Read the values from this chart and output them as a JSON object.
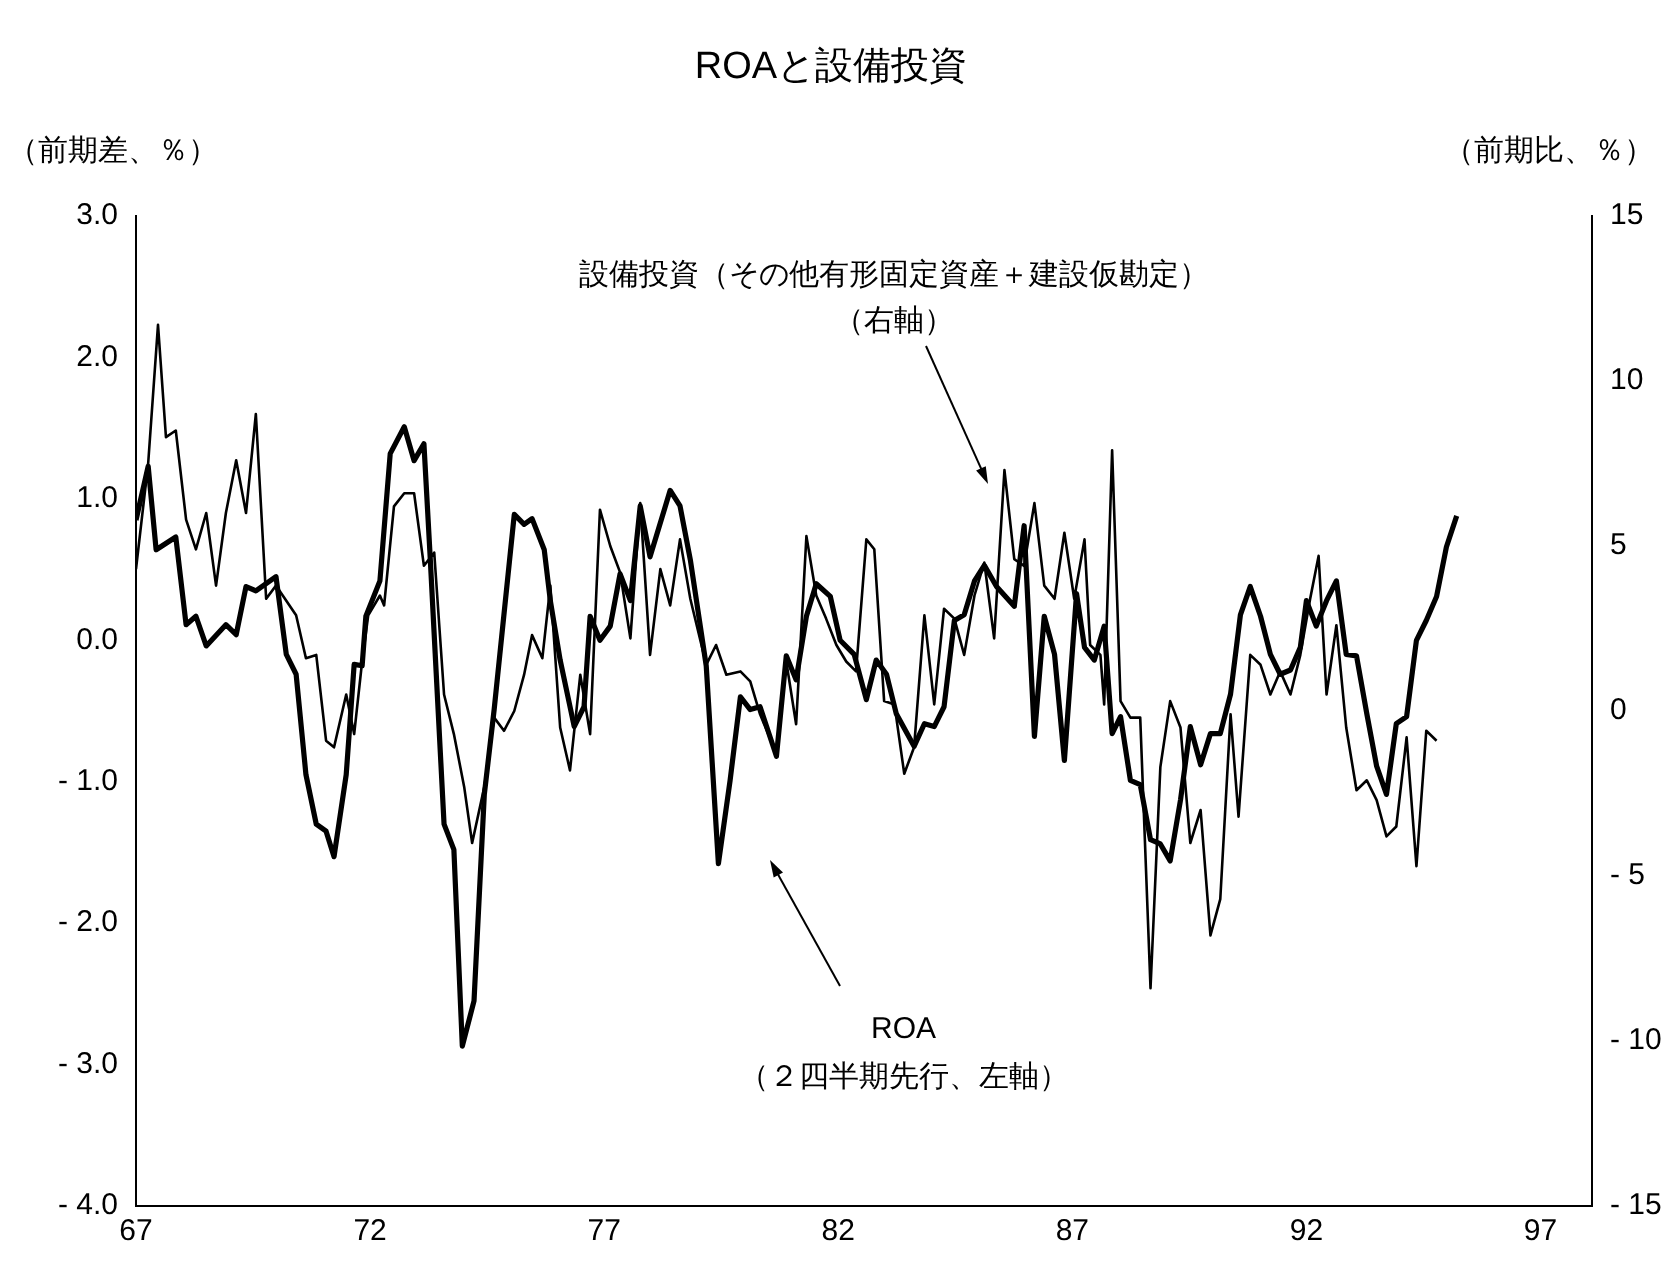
{
  "chart_data": {
    "type": "line",
    "title": "ROAと設備投資",
    "ylabel": "（前期差、％）",
    "y2label": "（前期比、％）",
    "legend": false,
    "grid": false,
    "xlim": [
      67,
      98.1
    ],
    "xticks": [
      67,
      72,
      77,
      82,
      87,
      92,
      97
    ],
    "ylim": [
      -4,
      3
    ],
    "yticks": [
      {
        "value": 3,
        "label": "3.0"
      },
      {
        "value": 2,
        "label": "2.0"
      },
      {
        "value": 1,
        "label": "1.0"
      },
      {
        "value": 0,
        "label": "0.0"
      },
      {
        "value": -1,
        "label": "- 1.0"
      },
      {
        "value": -2,
        "label": "- 2.0"
      },
      {
        "value": -3,
        "label": "- 3.0"
      },
      {
        "value": -4,
        "label": "- 4.0"
      }
    ],
    "y2lim": [
      -15,
      15
    ],
    "y2ticks": [
      15,
      10,
      5,
      0,
      {
        "value": -5,
        "label": "- 5"
      },
      {
        "value": -10,
        "label": "- 10"
      },
      {
        "value": -15,
        "label": "- 15"
      }
    ],
    "annotations": [
      "設備投資（その他有形固定資産＋建設仮勘定）",
      "（右軸）",
      "ROA",
      "（２四半期先行、左軸）"
    ],
    "series": [
      {
        "color": "#000000",
        "axis": "y",
        "x": [
          67.0,
          67.26,
          67.43,
          67.85,
          68.07,
          68.28,
          68.5,
          68.92,
          69.14,
          69.35,
          69.56,
          69.99,
          70.21,
          70.42,
          70.63,
          70.85,
          71.06,
          71.23,
          71.49,
          71.66,
          71.83,
          71.91,
          72.21,
          72.43,
          72.73,
          72.94,
          73.15,
          73.28,
          73.58,
          73.79,
          73.97,
          74.22,
          74.44,
          74.65,
          75.08,
          75.29,
          75.46,
          75.72,
          75.85,
          76.06,
          76.36,
          76.57,
          76.7,
          76.91,
          77.13,
          77.34,
          77.56,
          77.77,
          77.98,
          78.41,
          78.62,
          78.84,
          79.18,
          79.44,
          79.69,
          79.91,
          80.12,
          80.33,
          80.68,
          80.89,
          81.1,
          81.32,
          81.53,
          81.83,
          82.04,
          82.34,
          82.6,
          82.81,
          83.03,
          83.24,
          83.62,
          83.84,
          84.05,
          84.26,
          84.48,
          84.69,
          84.91,
          85.12,
          85.38,
          85.76,
          85.97,
          86.19,
          86.4,
          86.62,
          86.83,
          87.09,
          87.26,
          87.47,
          87.68,
          87.85,
          88.03,
          88.24,
          88.45,
          88.67,
          88.88,
          89.09,
          89.31,
          89.52,
          89.74,
          89.95,
          90.16,
          90.38,
          90.59,
          90.8,
          91.02,
          91.23,
          91.44,
          91.66,
          91.87,
          92.0,
          92.21,
          92.43,
          92.64,
          92.85,
          93.07,
          93.29,
          93.5,
          93.71,
          93.92,
          94.14,
          94.35,
          94.56,
          94.78,
          94.99,
          95.21
        ],
        "values": [
          0.85,
          1.23,
          0.64,
          0.73,
          0.11,
          0.17,
          -0.04,
          0.11,
          0.04,
          0.38,
          0.35,
          0.45,
          -0.1,
          -0.24,
          -0.95,
          -1.3,
          -1.35,
          -1.53,
          -0.95,
          -0.17,
          -0.18,
          0.17,
          0.42,
          1.32,
          1.51,
          1.27,
          1.39,
          0.61,
          -1.3,
          -1.48,
          -2.87,
          -2.55,
          -1.09,
          -0.49,
          0.89,
          0.82,
          0.86,
          0.64,
          0.28,
          -0.14,
          -0.61,
          -0.47,
          0.17,
          0.0,
          0.1,
          0.47,
          0.28,
          0.95,
          0.59,
          1.06,
          0.95,
          0.57,
          -0.18,
          -1.58,
          -0.99,
          -0.4,
          -0.49,
          -0.47,
          -0.82,
          -0.11,
          -0.28,
          0.17,
          0.4,
          0.31,
          0.0,
          -0.1,
          -0.42,
          -0.14,
          -0.24,
          -0.52,
          -0.75,
          -0.59,
          -0.61,
          -0.47,
          0.14,
          0.18,
          0.42,
          0.53,
          0.38,
          0.24,
          0.81,
          -0.68,
          0.17,
          -0.1,
          -0.85,
          0.33,
          -0.05,
          -0.14,
          0.1,
          -0.66,
          -0.54,
          -0.99,
          -1.02,
          -1.41,
          -1.44,
          -1.56,
          -1.13,
          -0.61,
          -0.88,
          -0.66,
          -0.66,
          -0.38,
          0.18,
          0.38,
          0.17,
          -0.1,
          -0.24,
          -0.21,
          -0.05,
          0.28,
          0.1,
          0.28,
          0.42,
          -0.1,
          -0.11,
          -0.52,
          -0.89,
          -1.09,
          -0.59,
          -0.54,
          0.0,
          0.14,
          0.31,
          0.66,
          0.88
        ]
      },
      {
        "color": "#000000",
        "axis": "y2",
        "x": [
          67.0,
          67.26,
          67.47,
          67.64,
          67.85,
          68.07,
          68.28,
          68.5,
          68.71,
          68.92,
          69.14,
          69.35,
          69.56,
          69.78,
          69.99,
          70.42,
          70.63,
          70.85,
          71.06,
          71.23,
          71.49,
          71.66,
          71.83,
          71.96,
          72.21,
          72.3,
          72.51,
          72.73,
          72.94,
          73.15,
          73.37,
          73.58,
          73.79,
          74.01,
          74.18,
          74.44,
          74.65,
          74.86,
          75.08,
          75.29,
          75.46,
          75.68,
          75.85,
          76.06,
          76.27,
          76.49,
          76.7,
          76.91,
          77.13,
          77.34,
          77.56,
          77.77,
          77.98,
          78.2,
          78.41,
          78.62,
          78.84,
          79.18,
          79.39,
          79.61,
          79.91,
          80.12,
          80.33,
          80.68,
          80.89,
          81.1,
          81.32,
          81.53,
          81.74,
          81.96,
          82.17,
          82.38,
          82.6,
          82.77,
          82.98,
          83.2,
          83.41,
          83.62,
          83.84,
          84.05,
          84.26,
          84.48,
          84.69,
          84.91,
          85.12,
          85.33,
          85.55,
          85.76,
          85.97,
          86.19,
          86.4,
          86.62,
          86.83,
          87.04,
          87.26,
          87.38,
          87.6,
          87.68,
          87.85,
          88.03,
          88.24,
          88.45,
          88.67,
          88.88,
          89.09,
          89.31,
          89.52,
          89.74,
          89.95,
          90.16,
          90.38,
          90.55,
          90.8,
          91.02,
          91.23,
          91.44,
          91.66,
          91.87,
          92.08,
          92.26,
          92.43,
          92.64,
          92.85,
          93.07,
          93.29,
          93.5,
          93.71,
          93.92,
          94.14,
          94.35,
          94.56,
          94.78
        ],
        "values": [
          4.3,
          7.5,
          11.7,
          8.3,
          8.5,
          5.8,
          4.9,
          6.0,
          3.8,
          6.0,
          7.6,
          6.0,
          9.0,
          3.4,
          3.8,
          2.9,
          1.6,
          1.7,
          -0.9,
          -1.1,
          0.5,
          -0.7,
          1.5,
          2.9,
          3.5,
          3.2,
          6.2,
          6.6,
          6.6,
          4.4,
          4.8,
          0.5,
          -0.7,
          -2.3,
          -4.0,
          -2.3,
          -0.2,
          -0.6,
          0.0,
          1.1,
          2.3,
          1.6,
          3.8,
          -0.5,
          -1.8,
          1.1,
          -0.7,
          6.1,
          5.0,
          4.2,
          2.2,
          6.3,
          1.7,
          4.3,
          3.2,
          5.2,
          3.4,
          1.4,
          2.0,
          1.1,
          1.2,
          0.9,
          -0.1,
          -1.3,
          1.5,
          -0.4,
          5.3,
          3.5,
          2.8,
          2.0,
          1.5,
          1.2,
          5.2,
          4.9,
          0.3,
          0.2,
          -1.9,
          -1.1,
          2.9,
          0.2,
          3.1,
          2.8,
          1.7,
          3.5,
          4.5,
          2.2,
          7.3,
          4.6,
          4.4,
          6.3,
          3.8,
          3.4,
          5.4,
          3.4,
          5.2,
          2.0,
          1.7,
          0.2,
          7.9,
          0.3,
          -0.2,
          -0.2,
          -8.4,
          -1.7,
          0.3,
          -0.5,
          -4.0,
          -3.0,
          -6.8,
          -5.7,
          -0.1,
          -3.2,
          1.7,
          1.4,
          0.5,
          1.2,
          0.5,
          1.7,
          3.4,
          4.7,
          0.5,
          2.6,
          -0.5,
          -2.4,
          -2.1,
          -2.7,
          -3.8,
          -3.5,
          -0.8,
          -4.7,
          -0.6,
          -0.9
        ]
      }
    ]
  }
}
